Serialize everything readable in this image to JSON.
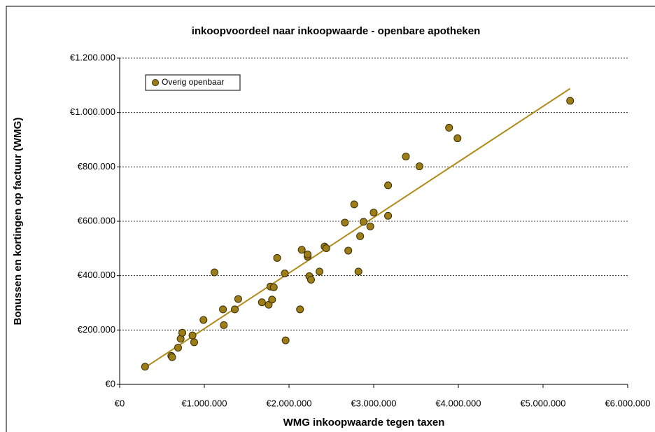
{
  "chart_data": {
    "type": "scatter",
    "title": "inkoopvoordeel naar inkoopwaarde - openbare apotheken",
    "xlabel": "WMG inkoopwaarde tegen taxen",
    "ylabel": "Bonussen en kortingen op factuur (WMG)",
    "series": [
      {
        "name": "Overig openbaar",
        "color": "#9c7d17",
        "x": [
          300000,
          610000,
          620000,
          690000,
          720000,
          740000,
          860000,
          880000,
          990000,
          1120000,
          1220000,
          1230000,
          1360000,
          1400000,
          1680000,
          1760000,
          1780000,
          1800000,
          1820000,
          1860000,
          1950000,
          1960000,
          2130000,
          2150000,
          2220000,
          2220000,
          2240000,
          2260000,
          2360000,
          2420000,
          2440000,
          2660000,
          2700000,
          2770000,
          2820000,
          2840000,
          2880000,
          2960000,
          3000000,
          3170000,
          3170000,
          3380000,
          3540000,
          3890000,
          3990000,
          5320000
        ],
        "values": [
          65000,
          105000,
          100000,
          135000,
          168000,
          190000,
          180000,
          155000,
          237000,
          412000,
          276000,
          218000,
          276000,
          314000,
          302000,
          293000,
          360000,
          312000,
          357000,
          465000,
          408000,
          162000,
          276000,
          495000,
          470000,
          478000,
          398000,
          385000,
          415000,
          507000,
          501000,
          595000,
          492000,
          662000,
          415000,
          545000,
          598000,
          581000,
          632000,
          732000,
          620000,
          838000,
          802000,
          944000,
          905000,
          1043000
        ]
      }
    ],
    "trendline": {
      "color": "#b08b1a",
      "x": [
        300000,
        5320000
      ],
      "values": [
        62000,
        1088000
      ]
    },
    "xlim": [
      0,
      6000000
    ],
    "xticks": [
      {
        "value": 0,
        "label": "€0"
      },
      {
        "value": 1000000,
        "label": "€1.000.000"
      },
      {
        "value": 2000000,
        "label": "€2.000.000"
      },
      {
        "value": 3000000,
        "label": "€3.000.000"
      },
      {
        "value": 4000000,
        "label": "€4.000.000"
      },
      {
        "value": 5000000,
        "label": "€5.000.000"
      },
      {
        "value": 6000000,
        "label": "€6.000.000"
      }
    ],
    "ylim": [
      0,
      1200000
    ],
    "yticks": [
      {
        "value": 0,
        "label": "€0"
      },
      {
        "value": 200000,
        "label": "€200.000"
      },
      {
        "value": 400000,
        "label": "€400.000"
      },
      {
        "value": 600000,
        "label": "€600.000"
      },
      {
        "value": 800000,
        "label": "€800.000"
      },
      {
        "value": 1000000,
        "label": "€1.000.000"
      },
      {
        "value": 1200000,
        "label": "€1.200.000"
      }
    ],
    "grid": true,
    "legend": "top-left"
  }
}
